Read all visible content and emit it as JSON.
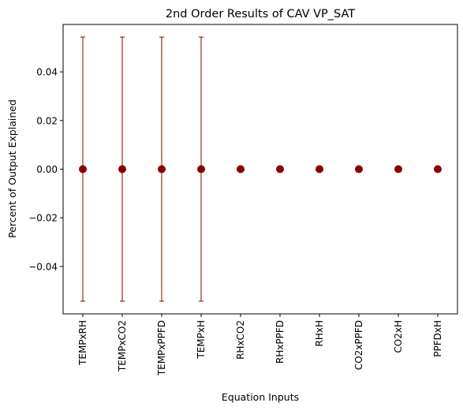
{
  "chart_data": {
    "type": "scatter",
    "title": "2nd Order Results of CAV VP_SAT",
    "xlabel": "Equation Inputs",
    "ylabel": "Percent of Output Explained",
    "categories": [
      "TEMPxRH",
      "TEMPxCO2",
      "TEMPxPPFD",
      "TEMPxH",
      "RHxCO2",
      "RHxPPFD",
      "RHxH",
      "CO2xPPFD",
      "CO2xH",
      "PPFDxH"
    ],
    "values": [
      0,
      0,
      0,
      0,
      0,
      0,
      0,
      0,
      0,
      0
    ],
    "error": [
      0.0543,
      0.0543,
      0.0543,
      0.0543,
      0,
      0,
      0,
      0,
      0,
      0
    ],
    "ylim": [
      -0.0595,
      0.0595
    ],
    "yticks": [
      -0.04,
      -0.02,
      0.0,
      0.02,
      0.04
    ],
    "ytick_labels": [
      "−0.04",
      "−0.02",
      "0.00",
      "0.02",
      "0.04"
    ],
    "grid": false,
    "colors": {
      "marker": "#8b0000",
      "errorbar": "#8b0000",
      "axes": "#000000"
    }
  }
}
